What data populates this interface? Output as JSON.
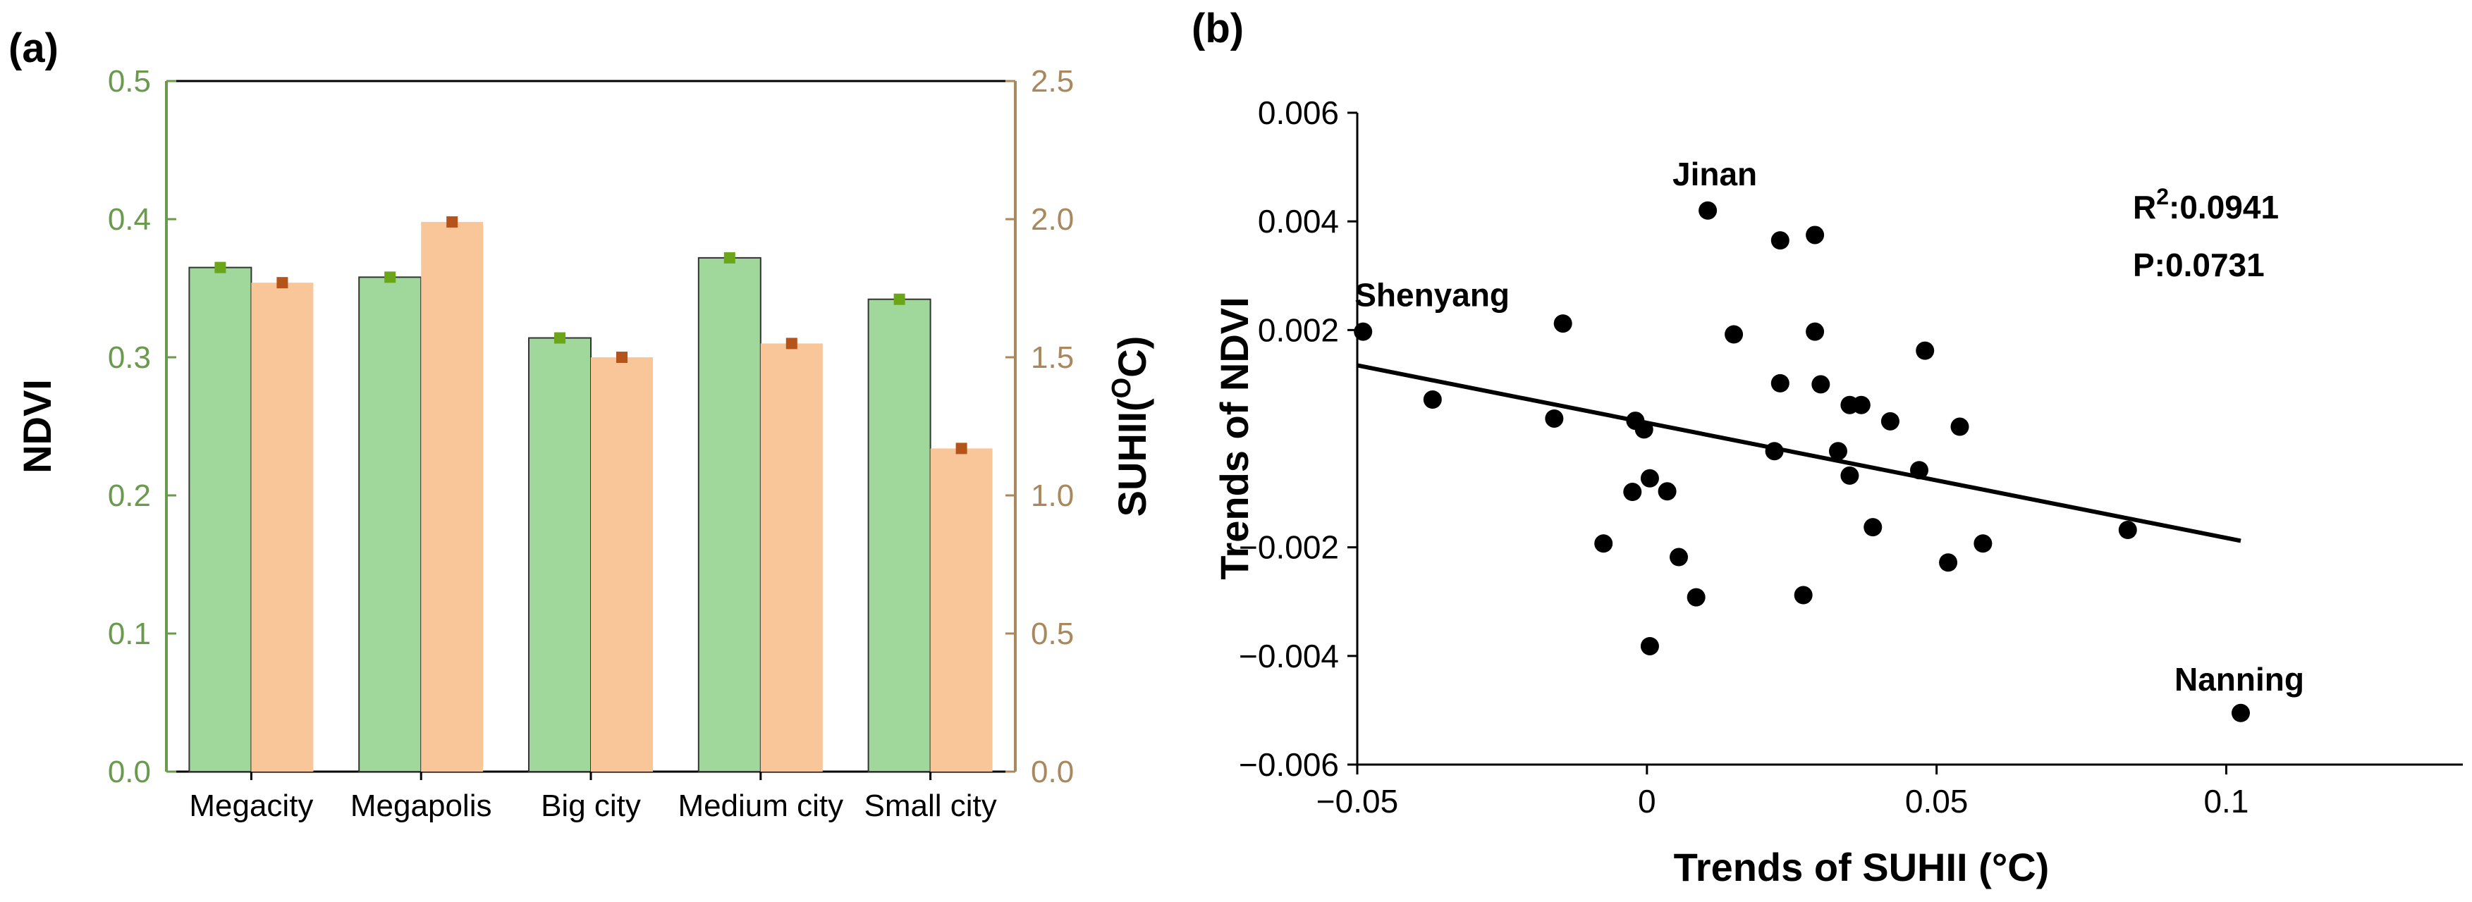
{
  "chart_data": [
    {
      "type": "bar",
      "panel_label": "(a)",
      "categories": [
        "Megacity",
        "Megapolis",
        "Big city",
        "Medium city",
        "Small city"
      ],
      "series": [
        {
          "name": "NDVI",
          "axis": "left",
          "values": [
            0.365,
            0.358,
            0.314,
            0.372,
            0.342
          ],
          "color": "#9fd89a",
          "marker_color": "#6aa51a"
        },
        {
          "name": "SUHII",
          "axis": "right",
          "values": [
            1.77,
            1.99,
            1.5,
            1.55,
            1.17
          ],
          "color": "#f9c69a",
          "marker_color": "#b5541a"
        }
      ],
      "ylabel": "NDVI",
      "ylabel_right": "SUHII(",
      "ylabel_right_sup": "O",
      "ylabel_right_end": "C)",
      "ylim": [
        0,
        0.5
      ],
      "ylim_right": [
        0,
        2.5
      ],
      "yticks": [
        "0.0",
        "0.1",
        "0.2",
        "0.3",
        "0.4",
        "0.5"
      ],
      "yticks_right": [
        "0.0",
        "0.5",
        "1.0",
        "1.5",
        "2.0",
        "2.5"
      ],
      "left_axis_color": "#6a9a4e",
      "right_axis_color": "#a8885c"
    },
    {
      "type": "scatter",
      "panel_label": "(b)",
      "xlabel": "Trends of SUHII (°C)",
      "ylabel": "Trends of NDVI",
      "xlim": [
        -0.05,
        0.145
      ],
      "ylim": [
        -0.006,
        0.006
      ],
      "xticks": [
        "−0.05",
        "0",
        "0.05",
        "0.1"
      ],
      "yticks": [
        "−0.006",
        "−0.004",
        "−0.002",
        "0.002",
        "0.004",
        "0.006"
      ],
      "points": [
        [
          -0.049,
          0.00197
        ],
        [
          -0.037,
          0.00072
        ],
        [
          -0.0145,
          0.00212
        ],
        [
          -0.016,
          0.00037
        ],
        [
          -0.002,
          0.00033
        ],
        [
          -0.0005,
          0.00017
        ],
        [
          0.0005,
          -0.00073
        ],
        [
          -0.0025,
          -0.00098
        ],
        [
          0.0035,
          -0.00097
        ],
        [
          -0.0075,
          -0.00193
        ],
        [
          0.0055,
          -0.00218
        ],
        [
          0.0085,
          -0.00292
        ],
        [
          0.0005,
          -0.00382
        ],
        [
          0.0105,
          0.0042
        ],
        [
          0.015,
          0.00192
        ],
        [
          0.023,
          0.00365
        ],
        [
          0.029,
          0.00375
        ],
        [
          0.029,
          0.00197
        ],
        [
          0.023,
          0.00102
        ],
        [
          0.03,
          0.001
        ],
        [
          0.035,
          0.00062
        ],
        [
          0.037,
          0.00062
        ],
        [
          0.042,
          0.00032
        ],
        [
          0.048,
          0.00162
        ],
        [
          0.054,
          0.00022
        ],
        [
          0.022,
          -0.00023
        ],
        [
          0.033,
          -0.00023
        ],
        [
          0.035,
          -0.00068
        ],
        [
          0.047,
          -0.00058
        ],
        [
          0.039,
          -0.00163
        ],
        [
          0.027,
          -0.00288
        ],
        [
          0.052,
          -0.00228
        ],
        [
          0.058,
          -0.00193
        ],
        [
          0.083,
          -0.00168
        ],
        [
          0.1025,
          -0.00505
        ]
      ],
      "fit_line": {
        "x1": -0.05,
        "y1": 0.00135,
        "x2": 0.1025,
        "y2": -0.00188
      },
      "annotations": [
        {
          "text": "Jinan",
          "x": 0.0105,
          "y": 0.0042
        },
        {
          "text": "Shenyang",
          "x": -0.049,
          "y": 0.00197
        },
        {
          "text": "Nanning",
          "x": 0.1025,
          "y": -0.00505
        }
      ],
      "r2_label": "R",
      "r2_sup": "2",
      "r2_value": ":0.0941",
      "p_label": "P:0.0731"
    }
  ]
}
